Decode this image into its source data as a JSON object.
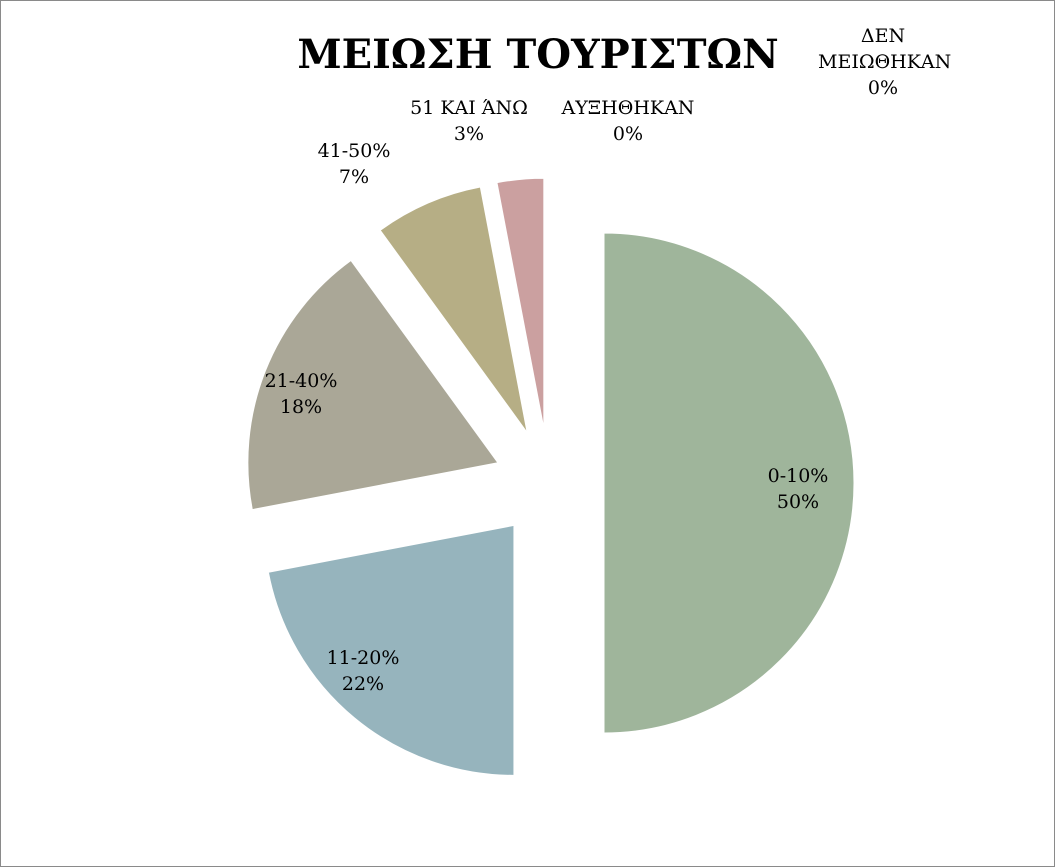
{
  "chart_data": {
    "type": "pie",
    "title": "ΜΕΙΩΣΗ ΤΟΥΡΙΣΤΩΝ",
    "categories": [
      "0-10%",
      "11-20%",
      "21-40%",
      "41-50%",
      "51 ΚΑΙ ΆΝΩ",
      "ΑΥΞΗΘΗΚΑΝ",
      "ΔΕΝ ΜΕΙΩΘΗΚΑΝ"
    ],
    "values": [
      50,
      22,
      18,
      7,
      3,
      0,
      0
    ],
    "value_labels": [
      "50%",
      "22%",
      "18%",
      "7%",
      "3%",
      "0%",
      "0%"
    ],
    "colors": [
      "#9fb59b",
      "#96b4bd",
      "#aaa797",
      "#b6ae85",
      "#cba0a0",
      "#b4a7c4",
      "#a3c2b0"
    ]
  }
}
